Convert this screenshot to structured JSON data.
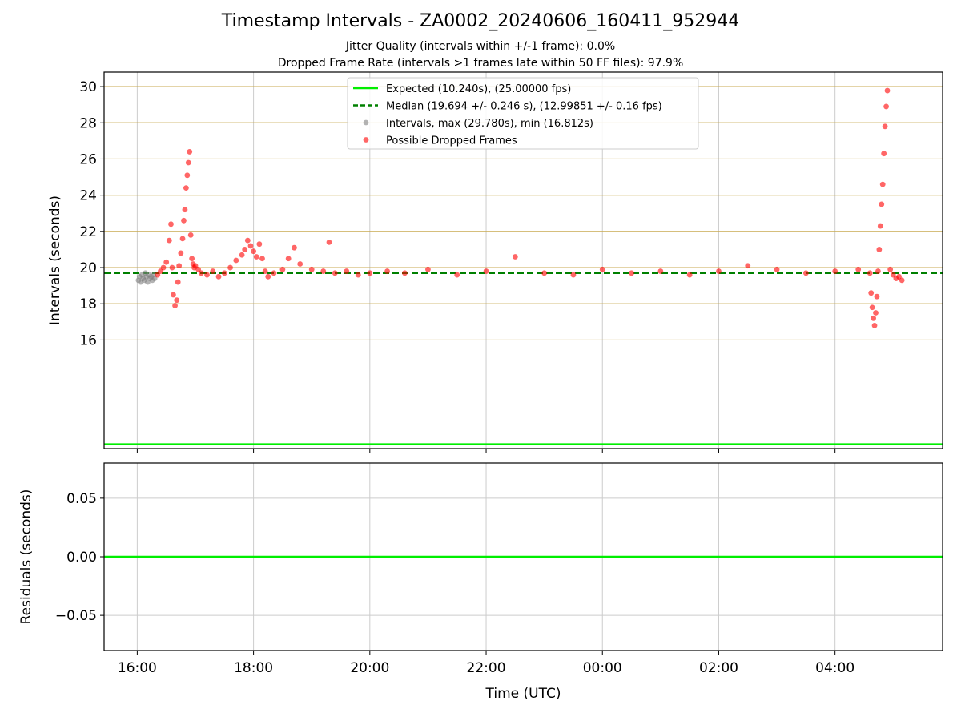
{
  "figure": {
    "title": "Timestamp Intervals - ZA0002_20240606_160411_952944",
    "subtitle_jitter": "Jitter Quality (intervals within +/-1 frame): 0.0%",
    "subtitle_dropped": "Dropped Frame Rate (intervals >1 frames late within 50 FF files): 97.9%"
  },
  "chart_data": [
    {
      "type": "scatter",
      "panel": "top",
      "ylabel": "Intervals (seconds)",
      "ylim": [
        10.0,
        30.8
      ],
      "yticks": [
        16,
        18,
        20,
        22,
        24,
        26,
        28,
        30
      ],
      "ytick_labels": [
        "16",
        "18",
        "20",
        "22",
        "24",
        "26",
        "28",
        "30"
      ],
      "y_gridlines": [
        16,
        18,
        20,
        22,
        24,
        26,
        28,
        30
      ],
      "grid": true,
      "legend_position": "upper-center",
      "colors": {
        "expected": "#00ee00",
        "median": "#008000",
        "intervals": "#808080",
        "dropped": "#ff0000",
        "hgrid": "#c8aa50"
      },
      "expected_interval": 10.24,
      "median_interval": 19.694,
      "series": [
        {
          "name": "Expected (10.240s), (25.00000 fps)",
          "kind": "hline",
          "y": 10.24
        },
        {
          "name": "Median (19.694 +/- 0.246 s), (12.99851 +/- 0.16 fps)",
          "kind": "dashed-hline",
          "y": 19.694
        },
        {
          "name": "Intervals, max (29.780s), min (16.812s)",
          "kind": "points",
          "x": [
            16.02,
            16.04,
            16.06,
            16.08,
            16.1,
            16.12,
            16.14,
            16.16,
            16.18,
            16.2,
            16.22,
            16.24,
            16.26,
            16.28,
            16.3
          ],
          "y": [
            19.3,
            19.5,
            19.2,
            19.6,
            19.4,
            19.3,
            19.7,
            19.5,
            19.2,
            19.6,
            19.4,
            19.5,
            19.3,
            19.6,
            19.4
          ]
        },
        {
          "name": "Possible Dropped Frames",
          "kind": "points",
          "x": [
            16.35,
            16.4,
            16.45,
            16.5,
            16.55,
            16.58,
            16.6,
            16.62,
            16.65,
            16.68,
            16.7,
            16.72,
            16.75,
            16.78,
            16.8,
            16.82,
            16.84,
            16.86,
            16.88,
            16.9,
            16.92,
            16.94,
            16.96,
            16.98,
            17.0,
            17.05,
            17.1,
            17.2,
            17.3,
            17.4,
            17.5,
            17.6,
            17.7,
            17.8,
            17.85,
            17.9,
            17.95,
            18.0,
            18.05,
            18.1,
            18.15,
            18.2,
            18.25,
            18.35,
            18.5,
            18.6,
            18.7,
            18.8,
            19.0,
            19.2,
            19.3,
            19.4,
            19.6,
            19.8,
            20.0,
            20.3,
            20.6,
            21.0,
            21.5,
            22.0,
            22.5,
            23.0,
            23.5,
            24.0,
            24.5,
            25.0,
            25.5,
            26.0,
            26.5,
            27.0,
            27.5,
            28.0,
            28.4,
            28.6,
            28.62,
            28.64,
            28.66,
            28.68,
            28.7,
            28.72,
            28.74,
            28.76,
            28.78,
            28.8,
            28.82,
            28.84,
            28.86,
            28.88,
            28.9,
            28.95,
            29.0,
            29.05,
            29.1,
            29.15
          ],
          "y": [
            19.6,
            19.8,
            20.0,
            20.3,
            21.5,
            22.4,
            20.0,
            18.5,
            17.9,
            18.2,
            19.2,
            20.1,
            20.8,
            21.6,
            22.6,
            23.2,
            24.4,
            25.1,
            25.8,
            26.4,
            21.8,
            20.5,
            20.2,
            20.0,
            20.1,
            19.9,
            19.7,
            19.6,
            19.8,
            19.5,
            19.7,
            20.0,
            20.4,
            20.7,
            21.0,
            21.5,
            21.2,
            20.9,
            20.6,
            21.3,
            20.5,
            19.8,
            19.5,
            19.7,
            19.9,
            20.5,
            21.1,
            20.2,
            19.9,
            19.8,
            21.4,
            19.7,
            19.8,
            19.6,
            19.7,
            19.8,
            19.7,
            19.9,
            19.6,
            19.8,
            20.6,
            19.7,
            19.6,
            19.9,
            19.7,
            19.8,
            19.6,
            19.8,
            20.1,
            19.9,
            19.7,
            19.8,
            19.9,
            19.7,
            18.6,
            17.8,
            17.2,
            16.8,
            17.5,
            18.4,
            19.8,
            21.0,
            22.3,
            23.5,
            24.6,
            26.3,
            27.8,
            28.9,
            29.78,
            19.9,
            19.6,
            19.4,
            19.5,
            19.3
          ]
        }
      ]
    },
    {
      "type": "line",
      "panel": "bottom",
      "ylabel": "Residuals (seconds)",
      "ylim": [
        -0.08,
        0.08
      ],
      "yticks": [
        0.05,
        0.0,
        -0.05
      ],
      "ytick_labels": [
        "0.05",
        "0.00",
        "−0.05"
      ],
      "grid": true,
      "series": [
        {
          "kind": "hline",
          "y": 0.0
        }
      ]
    }
  ],
  "x_axis": {
    "xlabel": "Time (UTC)",
    "xlim": [
      15.43,
      29.85
    ],
    "ticks": [
      16,
      18,
      20,
      22,
      24,
      26,
      28
    ],
    "tick_labels": [
      "16:00",
      "18:00",
      "20:00",
      "22:00",
      "00:00",
      "02:00",
      "04:00"
    ]
  }
}
